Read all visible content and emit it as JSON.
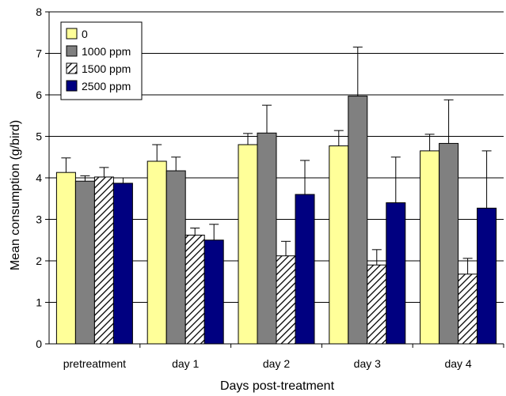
{
  "chart_data": {
    "type": "bar",
    "title": "",
    "xlabel": "Days post-treatment",
    "ylabel": "Mean consumption (g/bird)",
    "ylim": [
      0,
      8
    ],
    "yticks": [
      "0",
      "1",
      "2",
      "3",
      "4",
      "5",
      "6",
      "7",
      "8"
    ],
    "grid": true,
    "legend_position": "top-left",
    "categories": [
      "pretreatment",
      "day 1",
      "day 2",
      "day 3",
      "day 4"
    ],
    "series": [
      {
        "name": "0",
        "pattern": "solid",
        "color": "#ffff99",
        "values": [
          4.13,
          4.4,
          4.8,
          4.77,
          4.65
        ],
        "errors": [
          0.35,
          0.4,
          0.27,
          0.37,
          0.4
        ]
      },
      {
        "name": "1000 ppm",
        "pattern": "solid",
        "color": "#808080",
        "values": [
          3.92,
          4.17,
          5.08,
          5.97,
          4.83
        ],
        "errors": [
          0.13,
          0.33,
          0.67,
          1.18,
          1.05
        ]
      },
      {
        "name": "1500 ppm",
        "pattern": "hatch",
        "color": "#ffffff",
        "values": [
          4.02,
          2.62,
          2.12,
          1.9,
          1.68
        ],
        "errors": [
          0.23,
          0.17,
          0.35,
          0.37,
          0.38
        ]
      },
      {
        "name": "2500 ppm",
        "pattern": "solid",
        "color": "#000080",
        "values": [
          3.87,
          2.5,
          3.6,
          3.4,
          3.27
        ],
        "errors": [
          0.13,
          0.38,
          0.82,
          1.1,
          1.38
        ]
      }
    ]
  }
}
